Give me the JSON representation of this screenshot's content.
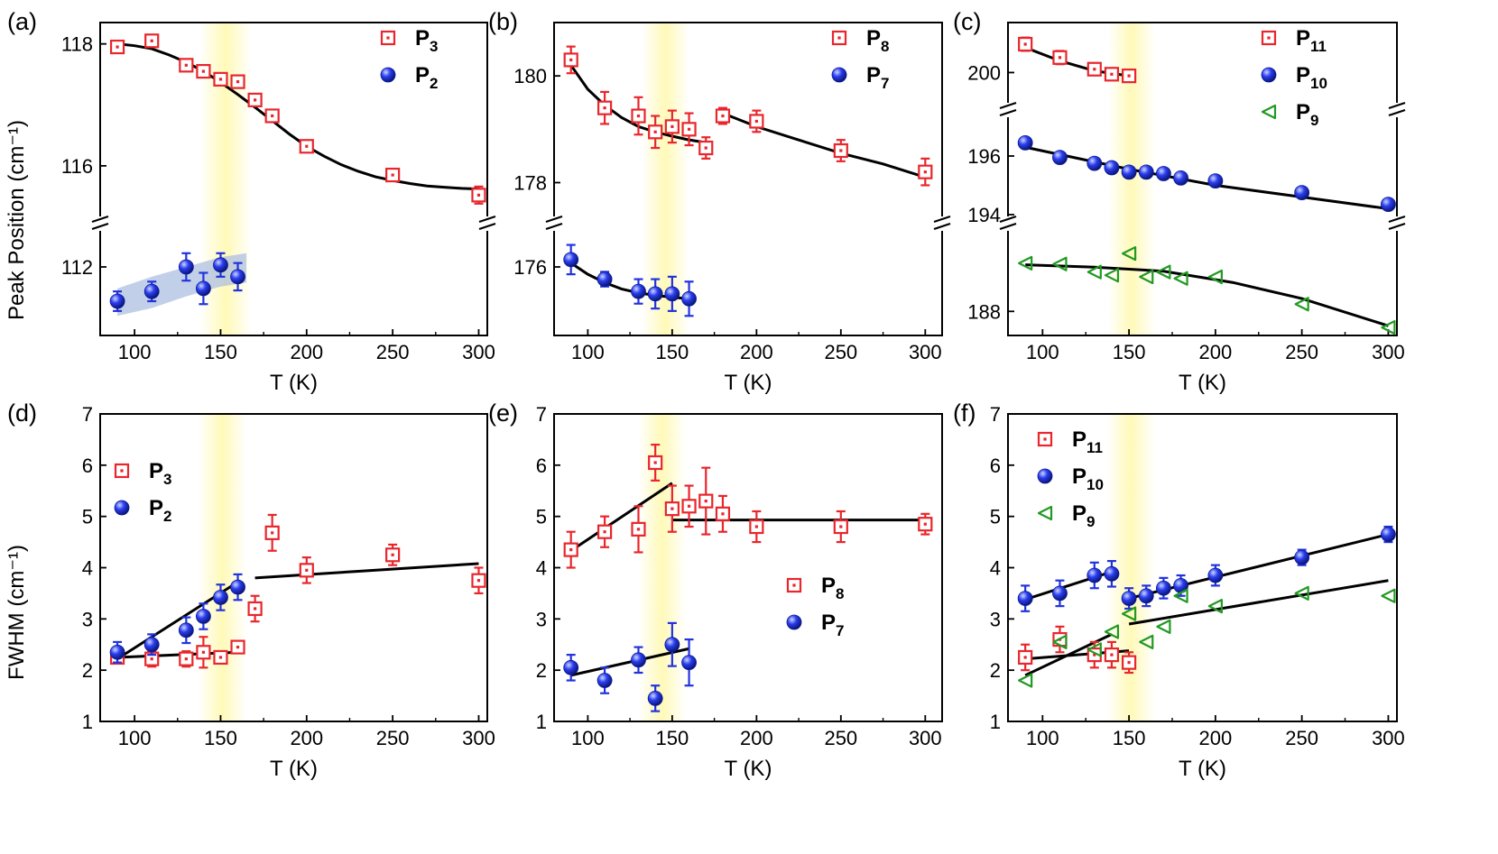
{
  "figure": {
    "ylabel_top": "Peak Position (cm⁻¹)",
    "ylabel_bottom": "FWHM (cm⁻¹)",
    "highlight_color": "#fff9b8",
    "colors": {
      "red": "#e8262c",
      "blue": "#2233dd",
      "green": "#229922",
      "fit": "#000000"
    }
  },
  "chart_data": [
    {
      "id": "a",
      "type": "scatter",
      "label": "(a)",
      "xlabel": "T (K)",
      "ylabel": "Peak Position (cm⁻¹)",
      "xlim": [
        80,
        305
      ],
      "xticks": [
        100,
        150,
        200,
        250,
        300
      ],
      "y_segments": [
        {
          "range": [
            115.2,
            118.35
          ],
          "ticks": [
            116,
            118
          ]
        },
        {
          "range": [
            111.3,
            112.35
          ],
          "ticks": [
            112
          ]
        }
      ],
      "highlight": [
        138,
        168
      ],
      "series": [
        {
          "name": "P",
          "sub": "3",
          "marker": "square",
          "color": "red",
          "segment": 0,
          "x": [
            90,
            110,
            130,
            140,
            150,
            160,
            170,
            180,
            200,
            250,
            300
          ],
          "y": [
            117.95,
            118.05,
            117.65,
            117.55,
            117.42,
            117.38,
            117.08,
            116.82,
            116.32,
            115.85,
            115.52
          ],
          "err": [
            0.06,
            0.06,
            0.06,
            0.06,
            0.06,
            0.06,
            0.06,
            0.06,
            0.06,
            0.08,
            0.14
          ]
        },
        {
          "name": "P",
          "sub": "2",
          "marker": "circle",
          "color": "blue",
          "segment": 1,
          "x": [
            90,
            110,
            130,
            140,
            150,
            160
          ],
          "y": [
            111.65,
            111.75,
            112.0,
            111.78,
            112.02,
            111.9
          ],
          "err": [
            0.1,
            0.1,
            0.14,
            0.16,
            0.12,
            0.14
          ]
        }
      ],
      "fits": [
        {
          "segment": 0,
          "x": [
            90,
            100,
            110,
            120,
            130,
            140,
            150,
            160,
            170,
            180,
            190,
            200,
            210,
            220,
            230,
            240,
            250,
            260,
            270,
            280,
            290,
            300
          ],
          "y": [
            118.0,
            117.97,
            117.92,
            117.82,
            117.7,
            117.55,
            117.37,
            117.17,
            116.96,
            116.74,
            116.52,
            116.32,
            116.16,
            116.02,
            115.91,
            115.82,
            115.76,
            115.71,
            115.67,
            115.65,
            115.63,
            115.62
          ]
        }
      ],
      "band": {
        "segment": 1,
        "x": [
          90,
          110,
          130,
          150,
          165
        ],
        "y_low": [
          111.5,
          111.58,
          111.7,
          111.8,
          111.84
        ],
        "y_high": [
          111.78,
          111.9,
          112.0,
          112.1,
          112.14
        ]
      },
      "legend": "top-right"
    },
    {
      "id": "b",
      "type": "scatter",
      "label": "(b)",
      "xlabel": "T (K)",
      "ylabel": "",
      "xlim": [
        80,
        310
      ],
      "xticks": [
        100,
        150,
        200,
        250,
        300
      ],
      "y_segments": [
        {
          "range": [
            177.4,
            181.0
          ],
          "ticks": [
            178,
            180
          ]
        },
        {
          "range": [
            174.6,
            176.7
          ],
          "ticks": [
            176
          ]
        }
      ],
      "highlight": [
        132,
        160
      ],
      "series": [
        {
          "name": "P",
          "sub": "8",
          "marker": "square",
          "color": "red",
          "segment": 0,
          "x": [
            90,
            110,
            130,
            140,
            150,
            160,
            170,
            180,
            200,
            250,
            300
          ],
          "y": [
            180.3,
            179.4,
            179.25,
            178.95,
            179.05,
            179.0,
            178.65,
            179.25,
            179.15,
            178.6,
            178.2
          ],
          "err": [
            0.25,
            0.3,
            0.35,
            0.3,
            0.3,
            0.3,
            0.2,
            0.15,
            0.2,
            0.2,
            0.25
          ]
        },
        {
          "name": "P",
          "sub": "7",
          "marker": "circle",
          "color": "blue",
          "segment": 1,
          "x": [
            90,
            110,
            130,
            140,
            150,
            160
          ],
          "y": [
            176.15,
            175.75,
            175.5,
            175.45,
            175.45,
            175.35
          ],
          "err": [
            0.3,
            0.15,
            0.25,
            0.3,
            0.35,
            0.35
          ]
        }
      ],
      "fits": [
        {
          "segment": 0,
          "x": [
            90,
            100,
            110,
            120,
            130,
            140,
            150,
            160,
            170
          ],
          "y": [
            180.2,
            179.75,
            179.45,
            179.22,
            179.05,
            178.95,
            178.87,
            178.8,
            178.75
          ]
        },
        {
          "segment": 0,
          "x": [
            180,
            200,
            225,
            250,
            275,
            300
          ],
          "y": [
            179.3,
            179.05,
            178.8,
            178.55,
            178.35,
            178.1
          ]
        },
        {
          "segment": 1,
          "x": [
            90,
            100,
            110,
            120,
            130,
            140,
            150,
            160
          ],
          "y": [
            176.08,
            175.85,
            175.68,
            175.55,
            175.47,
            175.42,
            175.38,
            175.35
          ]
        }
      ],
      "legend": "top-right"
    },
    {
      "id": "c",
      "type": "scatter",
      "label": "(c)",
      "xlabel": "T (K)",
      "ylabel": "",
      "xlim": [
        80,
        305
      ],
      "xticks": [
        100,
        150,
        200,
        250,
        300
      ],
      "y_segments": [
        {
          "range": [
            199.2,
            201.5
          ],
          "ticks": [
            200
          ]
        },
        {
          "range": [
            194.0,
            197.2
          ],
          "ticks": [
            194,
            196
          ]
        },
        {
          "range": [
            186.5,
            192.9
          ],
          "ticks": [
            188
          ]
        }
      ],
      "highlight": [
        138,
        165
      ],
      "series": [
        {
          "name": "P",
          "sub": "11",
          "marker": "square",
          "color": "red",
          "segment": 0,
          "x": [
            90,
            110,
            130,
            140,
            150
          ],
          "y": [
            200.85,
            200.45,
            200.1,
            199.95,
            199.9
          ],
          "err": [
            0.2,
            0.2,
            0.15,
            0.15,
            0.1
          ]
        },
        {
          "name": "P",
          "sub": "10",
          "marker": "circle",
          "color": "blue",
          "segment": 1,
          "x": [
            90,
            110,
            130,
            140,
            150,
            160,
            170,
            180,
            200,
            250,
            300
          ],
          "y": [
            196.45,
            195.95,
            195.75,
            195.6,
            195.45,
            195.45,
            195.4,
            195.25,
            195.15,
            194.75,
            194.35
          ],
          "err": [
            0.05,
            0.05,
            0.05,
            0.05,
            0.05,
            0.05,
            0.05,
            0.05,
            0.05,
            0.05,
            0.05
          ]
        },
        {
          "name": "P",
          "sub": "9",
          "marker": "triangle",
          "color": "green",
          "segment": 2,
          "x": [
            90,
            110,
            130,
            140,
            150,
            160,
            170,
            180,
            200,
            250,
            300
          ],
          "y": [
            191.0,
            190.95,
            190.45,
            190.25,
            191.6,
            190.15,
            190.45,
            190.05,
            190.15,
            188.45,
            187.0
          ],
          "err": [
            0,
            0,
            0,
            0,
            0,
            0,
            0,
            0,
            0,
            0,
            0
          ]
        }
      ],
      "fits": [
        {
          "segment": 0,
          "x": [
            90,
            110,
            130,
            150
          ],
          "y": [
            200.75,
            200.35,
            200.05,
            199.9
          ]
        },
        {
          "segment": 1,
          "x": [
            90,
            150,
            200,
            250,
            300
          ],
          "y": [
            196.3,
            195.55,
            195.0,
            194.6,
            194.2
          ]
        },
        {
          "segment": 2,
          "x": [
            90,
            130,
            170,
            210,
            250,
            300
          ],
          "y": [
            190.9,
            190.75,
            190.5,
            189.8,
            188.8,
            187.1
          ]
        }
      ],
      "legend": "top-right"
    },
    {
      "id": "d",
      "type": "scatter",
      "label": "(d)",
      "xlabel": "T (K)",
      "ylabel": "FWHM (cm⁻¹)",
      "xlim": [
        80,
        305
      ],
      "xticks": [
        100,
        150,
        200,
        250,
        300
      ],
      "y_segments": [
        {
          "range": [
            1,
            7
          ],
          "ticks": [
            1,
            2,
            3,
            4,
            5,
            6,
            7
          ]
        }
      ],
      "highlight": [
        137,
        165
      ],
      "series": [
        {
          "name": "P",
          "sub": "3",
          "marker": "square",
          "color": "red",
          "segment": 0,
          "x": [
            90,
            110,
            130,
            140,
            150,
            160,
            170,
            180,
            200,
            250,
            300
          ],
          "y": [
            2.25,
            2.22,
            2.22,
            2.35,
            2.25,
            2.45,
            3.2,
            4.68,
            3.95,
            4.25,
            3.75
          ],
          "err": [
            0.1,
            0.15,
            0.15,
            0.3,
            0.1,
            0.12,
            0.25,
            0.35,
            0.25,
            0.2,
            0.25
          ]
        },
        {
          "name": "P",
          "sub": "2",
          "marker": "circle",
          "color": "blue",
          "segment": 0,
          "x": [
            90,
            110,
            130,
            140,
            150,
            160
          ],
          "y": [
            2.35,
            2.5,
            2.78,
            3.05,
            3.42,
            3.62
          ],
          "err": [
            0.2,
            0.2,
            0.25,
            0.25,
            0.25,
            0.25
          ]
        }
      ],
      "fits": [
        {
          "segment": 0,
          "x": [
            90,
            160
          ],
          "y": [
            2.25,
            2.35
          ]
        },
        {
          "segment": 0,
          "x": [
            90,
            160
          ],
          "y": [
            2.22,
            3.72
          ]
        },
        {
          "segment": 0,
          "x": [
            170,
            300
          ],
          "y": [
            3.8,
            4.08
          ]
        }
      ],
      "legend": "top-left"
    },
    {
      "id": "e",
      "type": "scatter",
      "label": "(e)",
      "xlabel": "T (K)",
      "ylabel": "",
      "xlim": [
        80,
        310
      ],
      "xticks": [
        100,
        150,
        200,
        250,
        300
      ],
      "y_segments": [
        {
          "range": [
            1,
            7
          ],
          "ticks": [
            1,
            2,
            3,
            4,
            5,
            6,
            7
          ]
        }
      ],
      "highlight": [
        130,
        158
      ],
      "series": [
        {
          "name": "P",
          "sub": "8",
          "marker": "square",
          "color": "red",
          "segment": 0,
          "x": [
            90,
            110,
            130,
            140,
            150,
            160,
            170,
            180,
            200,
            250,
            300
          ],
          "y": [
            4.35,
            4.7,
            4.75,
            6.05,
            5.15,
            5.2,
            5.3,
            5.05,
            4.8,
            4.8,
            4.85
          ],
          "err": [
            0.35,
            0.3,
            0.45,
            0.35,
            0.45,
            0.4,
            0.65,
            0.35,
            0.3,
            0.3,
            0.2
          ]
        },
        {
          "name": "P",
          "sub": "7",
          "marker": "circle",
          "color": "blue",
          "segment": 0,
          "x": [
            90,
            110,
            130,
            140,
            150,
            160
          ],
          "y": [
            2.05,
            1.8,
            2.2,
            1.45,
            2.5,
            2.15
          ],
          "err": [
            0.25,
            0.25,
            0.25,
            0.25,
            0.42,
            0.45
          ]
        }
      ],
      "fits": [
        {
          "segment": 0,
          "x": [
            90,
            150
          ],
          "y": [
            4.33,
            5.65
          ]
        },
        {
          "segment": 0,
          "x": [
            150,
            300
          ],
          "y": [
            4.93,
            4.93
          ]
        },
        {
          "segment": 0,
          "x": [
            90,
            160
          ],
          "y": [
            1.9,
            2.42
          ]
        }
      ],
      "legend": "bottom-right"
    },
    {
      "id": "f",
      "type": "scatter",
      "label": "(f)",
      "xlabel": "T (K)",
      "ylabel": "",
      "xlim": [
        80,
        305
      ],
      "xticks": [
        100,
        150,
        200,
        250,
        300
      ],
      "y_segments": [
        {
          "range": [
            1,
            7
          ],
          "ticks": [
            1,
            2,
            3,
            4,
            5,
            6,
            7
          ]
        }
      ],
      "highlight": [
        137,
        165
      ],
      "series": [
        {
          "name": "P",
          "sub": "11",
          "marker": "square",
          "color": "red",
          "segment": 0,
          "x": [
            90,
            110,
            130,
            140,
            150
          ],
          "y": [
            2.25,
            2.6,
            2.3,
            2.3,
            2.15
          ],
          "err": [
            0.25,
            0.25,
            0.25,
            0.25,
            0.2
          ]
        },
        {
          "name": "P",
          "sub": "10",
          "marker": "circle",
          "color": "blue",
          "segment": 0,
          "x": [
            90,
            110,
            130,
            140,
            150,
            160,
            170,
            180,
            200,
            250,
            300
          ],
          "y": [
            3.4,
            3.5,
            3.85,
            3.88,
            3.4,
            3.45,
            3.6,
            3.65,
            3.85,
            4.2,
            4.65
          ],
          "err": [
            0.25,
            0.25,
            0.25,
            0.25,
            0.2,
            0.2,
            0.2,
            0.2,
            0.2,
            0.15,
            0.15
          ]
        },
        {
          "name": "P",
          "sub": "9",
          "marker": "triangle",
          "color": "green",
          "segment": 0,
          "x": [
            90,
            110,
            130,
            140,
            150,
            160,
            170,
            180,
            200,
            250,
            300
          ],
          "y": [
            1.8,
            2.55,
            2.4,
            2.75,
            3.1,
            2.55,
            2.85,
            3.45,
            3.25,
            3.5,
            3.45
          ],
          "err": [
            0,
            0,
            0,
            0,
            0,
            0,
            0,
            0,
            0,
            0,
            0
          ]
        }
      ],
      "fits": [
        {
          "segment": 0,
          "x": [
            90,
            140
          ],
          "y": [
            3.38,
            3.92
          ]
        },
        {
          "segment": 0,
          "x": [
            150,
            300
          ],
          "y": [
            3.4,
            4.65
          ]
        },
        {
          "segment": 0,
          "x": [
            90,
            140
          ],
          "y": [
            1.9,
            2.7
          ]
        },
        {
          "segment": 0,
          "x": [
            150,
            300
          ],
          "y": [
            2.9,
            3.75
          ]
        },
        {
          "segment": 0,
          "x": [
            90,
            150
          ],
          "y": [
            2.22,
            2.38
          ]
        }
      ],
      "legend": "top-left"
    }
  ]
}
